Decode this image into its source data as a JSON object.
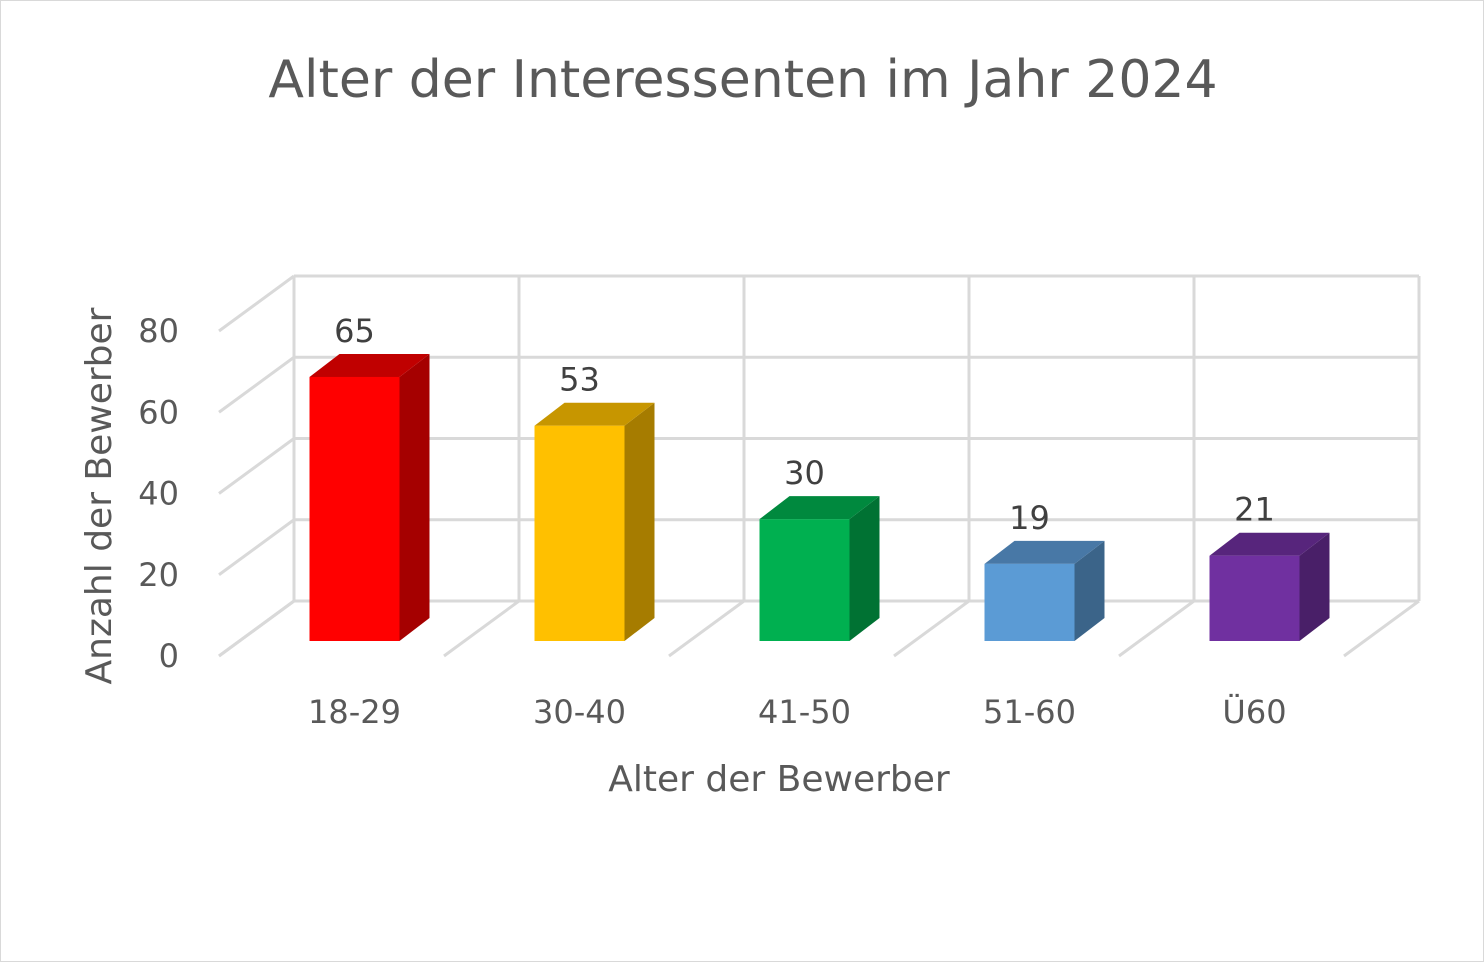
{
  "chart_data": {
    "type": "bar",
    "title": "Alter der Interessenten im Jahr 2024",
    "xlabel": "Alter der Bewerber",
    "ylabel": "Anzahl der Bewerber",
    "categories": [
      "18-29",
      "30-40",
      "41-50",
      "51-60",
      "Ü60"
    ],
    "values": [
      65,
      53,
      30,
      19,
      21
    ],
    "data_labels": [
      "65",
      "53",
      "30",
      "19",
      "21"
    ],
    "ylim": [
      0,
      80
    ],
    "yticks": [
      "0",
      "20",
      "40",
      "60",
      "80"
    ],
    "ytick_values": [
      0,
      20,
      40,
      60,
      80
    ],
    "grid": true,
    "legend": "none",
    "style": "3d-column",
    "colors": [
      {
        "front": "#ff0000",
        "side": "#a50000",
        "top": "#c00000"
      },
      {
        "front": "#ffc000",
        "side": "#a67c00",
        "top": "#c79600"
      },
      {
        "front": "#00b050",
        "side": "#007233",
        "top": "#00893e"
      },
      {
        "front": "#5b9bd5",
        "side": "#3b6489",
        "top": "#4878a6"
      },
      {
        "front": "#7030a0",
        "side": "#491f68",
        "top": "#57257c"
      }
    ]
  }
}
